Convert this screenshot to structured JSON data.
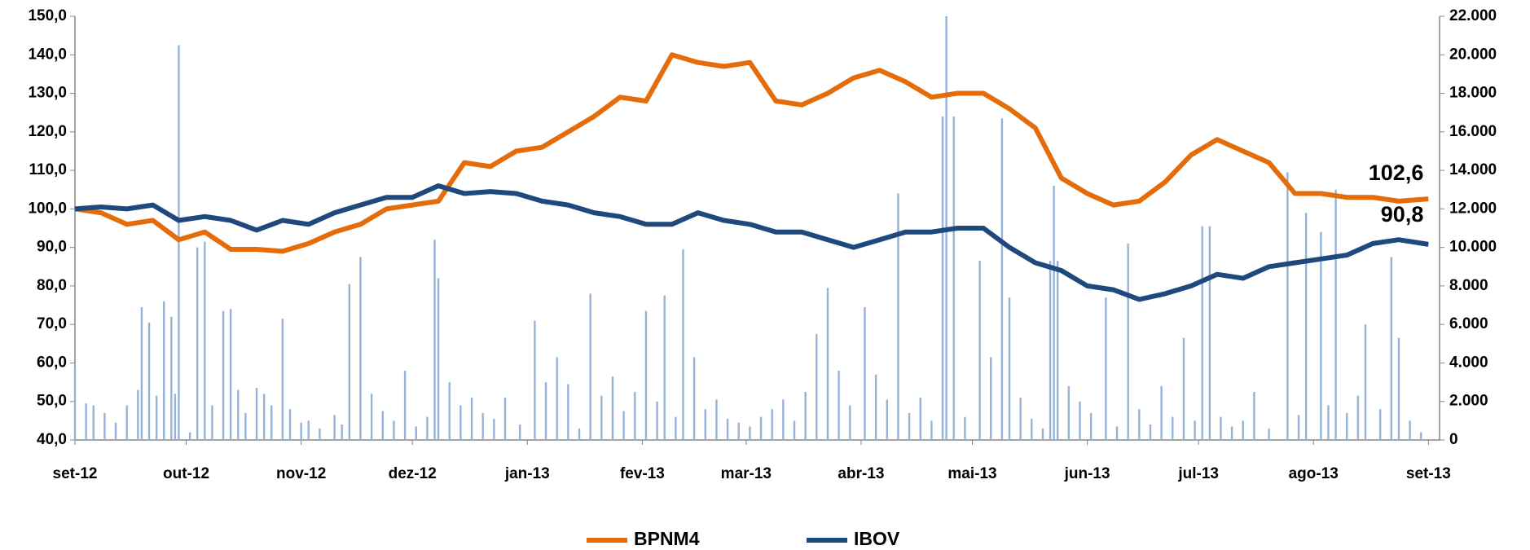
{
  "chart_data": {
    "type": "line",
    "x": [
      0,
      7,
      14,
      21,
      28,
      35,
      42,
      49,
      56,
      63,
      70,
      77,
      84,
      91,
      98,
      105,
      112,
      119,
      126,
      133,
      140,
      147,
      154,
      161,
      168,
      175,
      182,
      189,
      196,
      203,
      210,
      217,
      224,
      231,
      238,
      245,
      252,
      259,
      266,
      273,
      280,
      287,
      294,
      301,
      308,
      315,
      322,
      329,
      336,
      343,
      350,
      357,
      365
    ],
    "xlim": [
      0,
      368
    ],
    "xticks": [
      {
        "value": 0,
        "label": "set-12"
      },
      {
        "value": 30,
        "label": "out-12"
      },
      {
        "value": 61,
        "label": "nov-12"
      },
      {
        "value": 91,
        "label": "dez-12"
      },
      {
        "value": 122,
        "label": "jan-13"
      },
      {
        "value": 153,
        "label": "fev-13"
      },
      {
        "value": 181,
        "label": "mar-13"
      },
      {
        "value": 212,
        "label": "abr-13"
      },
      {
        "value": 242,
        "label": "mai-13"
      },
      {
        "value": 273,
        "label": "jun-13"
      },
      {
        "value": 303,
        "label": "jul-13"
      },
      {
        "value": 334,
        "label": "ago-13"
      },
      {
        "value": 365,
        "label": "set-13"
      }
    ],
    "ylim": [
      40,
      150
    ],
    "yticks": [
      {
        "value": 40,
        "label": "40,0"
      },
      {
        "value": 50,
        "label": "50,0"
      },
      {
        "value": 60,
        "label": "60,0"
      },
      {
        "value": 70,
        "label": "70,0"
      },
      {
        "value": 80,
        "label": "80,0"
      },
      {
        "value": 90,
        "label": "90,0"
      },
      {
        "value": 100,
        "label": "100,0"
      },
      {
        "value": 110,
        "label": "110,0"
      },
      {
        "value": 120,
        "label": "120,0"
      },
      {
        "value": 130,
        "label": "130,0"
      },
      {
        "value": 140,
        "label": "140,0"
      },
      {
        "value": 150,
        "label": "150,0"
      }
    ],
    "y2lim": [
      0,
      22000
    ],
    "y2ticks": [
      0,
      {
        "value": 2000,
        "label": "2.000"
      },
      {
        "value": 4000,
        "label": "4.000"
      },
      {
        "value": 6000,
        "label": "6.000"
      },
      {
        "value": 8000,
        "label": "8.000"
      },
      {
        "value": 10000,
        "label": "10.000"
      },
      {
        "value": 12000,
        "label": "12.000"
      },
      {
        "value": 14000,
        "label": "14.000"
      },
      {
        "value": 16000,
        "label": "16.000"
      },
      {
        "value": 18000,
        "label": "18.000"
      },
      {
        "value": 20000,
        "label": "20.000"
      },
      {
        "value": 22000,
        "label": "22.000"
      }
    ],
    "series": [
      {
        "name": "BPNM4",
        "color": "#E46C0A",
        "end_label": "102,6",
        "values": [
          100,
          99,
          96,
          97,
          92,
          94,
          89.5,
          89.5,
          89,
          91,
          94,
          96,
          100,
          101,
          102,
          112,
          111,
          115,
          116,
          120,
          124,
          129,
          128,
          140,
          138,
          137,
          138,
          128,
          127,
          130,
          134,
          136,
          133,
          129,
          130,
          130,
          126,
          121,
          108,
          104,
          101,
          102,
          107,
          114,
          118,
          115,
          112,
          104,
          104,
          103,
          103,
          102,
          102.6
        ]
      },
      {
        "name": "IBOV",
        "color": "#1F497D",
        "end_label": "90,8",
        "values": [
          100,
          100.5,
          100,
          101,
          97,
          98,
          97,
          94.5,
          97,
          96,
          99,
          101,
          103,
          103,
          106,
          104,
          104.5,
          104,
          102,
          101,
          99,
          98,
          96,
          96,
          99,
          97,
          96,
          94,
          94,
          92,
          90,
          92,
          94,
          94,
          95,
          95,
          90,
          86,
          84,
          80,
          79,
          76.5,
          78,
          80,
          83,
          82,
          85,
          86,
          87,
          88,
          91,
          92,
          90.8
        ]
      }
    ],
    "bars": {
      "color": "#95B3D7",
      "axis": "y2",
      "x": [
        0,
        3,
        5,
        8,
        11,
        14,
        17,
        18,
        20,
        22,
        24,
        26,
        27,
        28,
        31,
        33,
        35,
        37,
        40,
        42,
        44,
        46,
        49,
        51,
        53,
        56,
        58,
        61,
        63,
        66,
        70,
        72,
        74,
        77,
        80,
        83,
        86,
        89,
        92,
        95,
        97,
        98,
        101,
        104,
        107,
        110,
        113,
        116,
        120,
        124,
        127,
        130,
        133,
        136,
        139,
        142,
        145,
        148,
        151,
        154,
        157,
        159,
        162,
        164,
        167,
        170,
        173,
        176,
        179,
        182,
        185,
        188,
        191,
        194,
        197,
        200,
        203,
        206,
        209,
        213,
        216,
        219,
        222,
        225,
        228,
        231,
        234,
        235,
        237,
        240,
        244,
        247,
        250,
        252,
        255,
        258,
        261,
        263,
        264,
        265,
        268,
        271,
        274,
        278,
        281,
        284,
        287,
        290,
        293,
        296,
        299,
        302,
        304,
        306,
        309,
        312,
        315,
        318,
        322,
        327,
        330,
        332,
        336,
        338,
        340,
        343,
        346,
        348,
        352,
        355,
        357,
        360,
        363
      ],
      "values": [
        3800,
        1900,
        1800,
        1400,
        900,
        1800,
        2600,
        6900,
        6100,
        2300,
        7200,
        6400,
        2400,
        20500,
        400,
        10000,
        10300,
        1800,
        6700,
        6800,
        2600,
        1400,
        2700,
        2400,
        1800,
        6300,
        1600,
        900,
        1000,
        600,
        1300,
        800,
        8100,
        9500,
        2400,
        1500,
        1000,
        3600,
        700,
        1200,
        10400,
        8400,
        3000,
        1800,
        2200,
        1400,
        1100,
        2200,
        800,
        6200,
        3000,
        4300,
        2900,
        600,
        7600,
        2300,
        3300,
        1500,
        2500,
        6700,
        2000,
        7500,
        1200,
        9900,
        4300,
        1600,
        2100,
        1100,
        900,
        700,
        1200,
        1600,
        2100,
        1000,
        2500,
        5500,
        7900,
        3600,
        1800,
        6900,
        3400,
        2100,
        12800,
        1400,
        2200,
        1000,
        16800,
        22000,
        16800,
        1200,
        9300,
        4300,
        16700,
        7400,
        2200,
        1100,
        600,
        9300,
        13200,
        9300,
        2800,
        2000,
        1400,
        7400,
        700,
        10200,
        1600,
        800,
        2800,
        1200,
        5300,
        1000,
        11100,
        11100,
        1200,
        700,
        1000,
        2500,
        600,
        13900,
        1300,
        11800,
        10800,
        1800,
        13000,
        1400,
        2300,
        6000,
        1600,
        9500,
        5300,
        1000,
        400
      ]
    }
  }
}
